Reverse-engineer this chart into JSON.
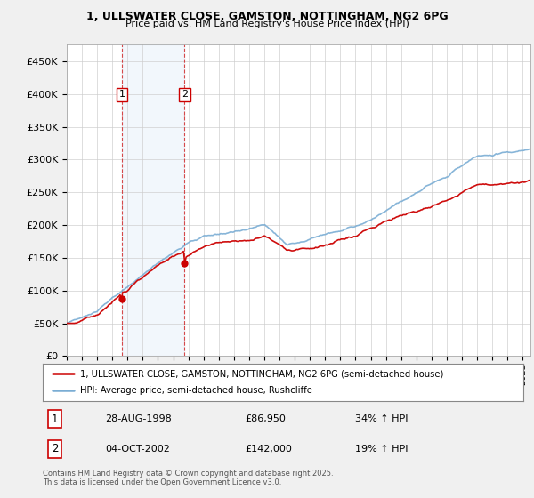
{
  "title_line1": "1, ULLSWATER CLOSE, GAMSTON, NOTTINGHAM, NG2 6PG",
  "title_line2": "Price paid vs. HM Land Registry's House Price Index (HPI)",
  "background_color": "#f0f0f0",
  "plot_bg_color": "#ffffff",
  "legend_line1": "1, ULLSWATER CLOSE, GAMSTON, NOTTINGHAM, NG2 6PG (semi-detached house)",
  "legend_line2": "HPI: Average price, semi-detached house, Rushcliffe",
  "red_color": "#cc0000",
  "blue_color": "#7aadd4",
  "transaction1_date": "28-AUG-1998",
  "transaction1_price": "£86,950",
  "transaction1_hpi": "34% ↑ HPI",
  "transaction2_date": "04-OCT-2002",
  "transaction2_price": "£142,000",
  "transaction2_hpi": "19% ↑ HPI",
  "footer": "Contains HM Land Registry data © Crown copyright and database right 2025.\nThis data is licensed under the Open Government Licence v3.0.",
  "ylim": [
    0,
    475000
  ],
  "yticks": [
    0,
    50000,
    100000,
    150000,
    200000,
    250000,
    300000,
    350000,
    400000,
    450000
  ],
  "xstart_year": 1995,
  "xend_year": 2025,
  "trans1_year": 1998.64,
  "trans1_price": 86950,
  "trans2_year": 2002.75,
  "trans2_price": 142000
}
